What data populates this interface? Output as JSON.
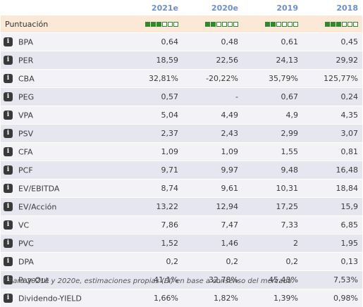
{
  "table": {
    "columns": [
      "2021e",
      "2020e",
      "2019",
      "2018"
    ],
    "score_row": {
      "label": "Puntuación",
      "max": 6,
      "scores": [
        3,
        2,
        2,
        3
      ],
      "filled_color": "#2f8a2f"
    },
    "rows": [
      {
        "label": "BPA",
        "values": [
          "0,64",
          "0,48",
          "0,61",
          "0,45"
        ]
      },
      {
        "label": "PER",
        "values": [
          "18,59",
          "22,56",
          "24,13",
          "29,92"
        ]
      },
      {
        "label": "CBA",
        "values": [
          "32,81%",
          "-20,22%",
          "35,79%",
          "125,77%"
        ]
      },
      {
        "label": "PEG",
        "values": [
          "0,57",
          "-",
          "0,67",
          "0,24"
        ]
      },
      {
        "label": "VPA",
        "values": [
          "5,04",
          "4,49",
          "4,9",
          "4,35"
        ]
      },
      {
        "label": "PSV",
        "values": [
          "2,37",
          "2,43",
          "2,99",
          "3,07"
        ]
      },
      {
        "label": "CFA",
        "values": [
          "1,09",
          "1,09",
          "1,55",
          "0,81"
        ]
      },
      {
        "label": "PCF",
        "values": [
          "9,71",
          "9,97",
          "9,48",
          "16,48"
        ]
      },
      {
        "label": "EV/EBITDA",
        "values": [
          "8,74",
          "9,61",
          "10,31",
          "18,84"
        ]
      },
      {
        "label": "EV/Acción",
        "values": [
          "13,22",
          "12,94",
          "17,25",
          "15,9"
        ]
      },
      {
        "label": "VC",
        "values": [
          "7,86",
          "7,47",
          "7,33",
          "6,85"
        ]
      },
      {
        "label": "PVC",
        "values": [
          "1,52",
          "1,46",
          "2",
          "1,95"
        ]
      },
      {
        "label": "DPA",
        "values": [
          "0,2",
          "0,2",
          "0,2",
          "0,13"
        ]
      },
      {
        "label": "Pay-Out",
        "values": [
          "41,1%",
          "32,78%",
          "45,43%",
          "7,53%"
        ]
      },
      {
        "label": "Dividendo-YIELD",
        "values": [
          "1,66%",
          "1,82%",
          "1,39%",
          "0,98%"
        ]
      }
    ],
    "info_icon": "info-icon",
    "info_glyph": "i"
  },
  "footnote": "* Para 2021e y 2020e, estimaciones propias (EI) en base a consenso del mercado.",
  "colors": {
    "header_text": "#6e8fc9",
    "score_row_bg": "#fbe8d6",
    "row_odd_bg": "#f3f3f7",
    "row_even_bg": "#e6e6f1"
  }
}
